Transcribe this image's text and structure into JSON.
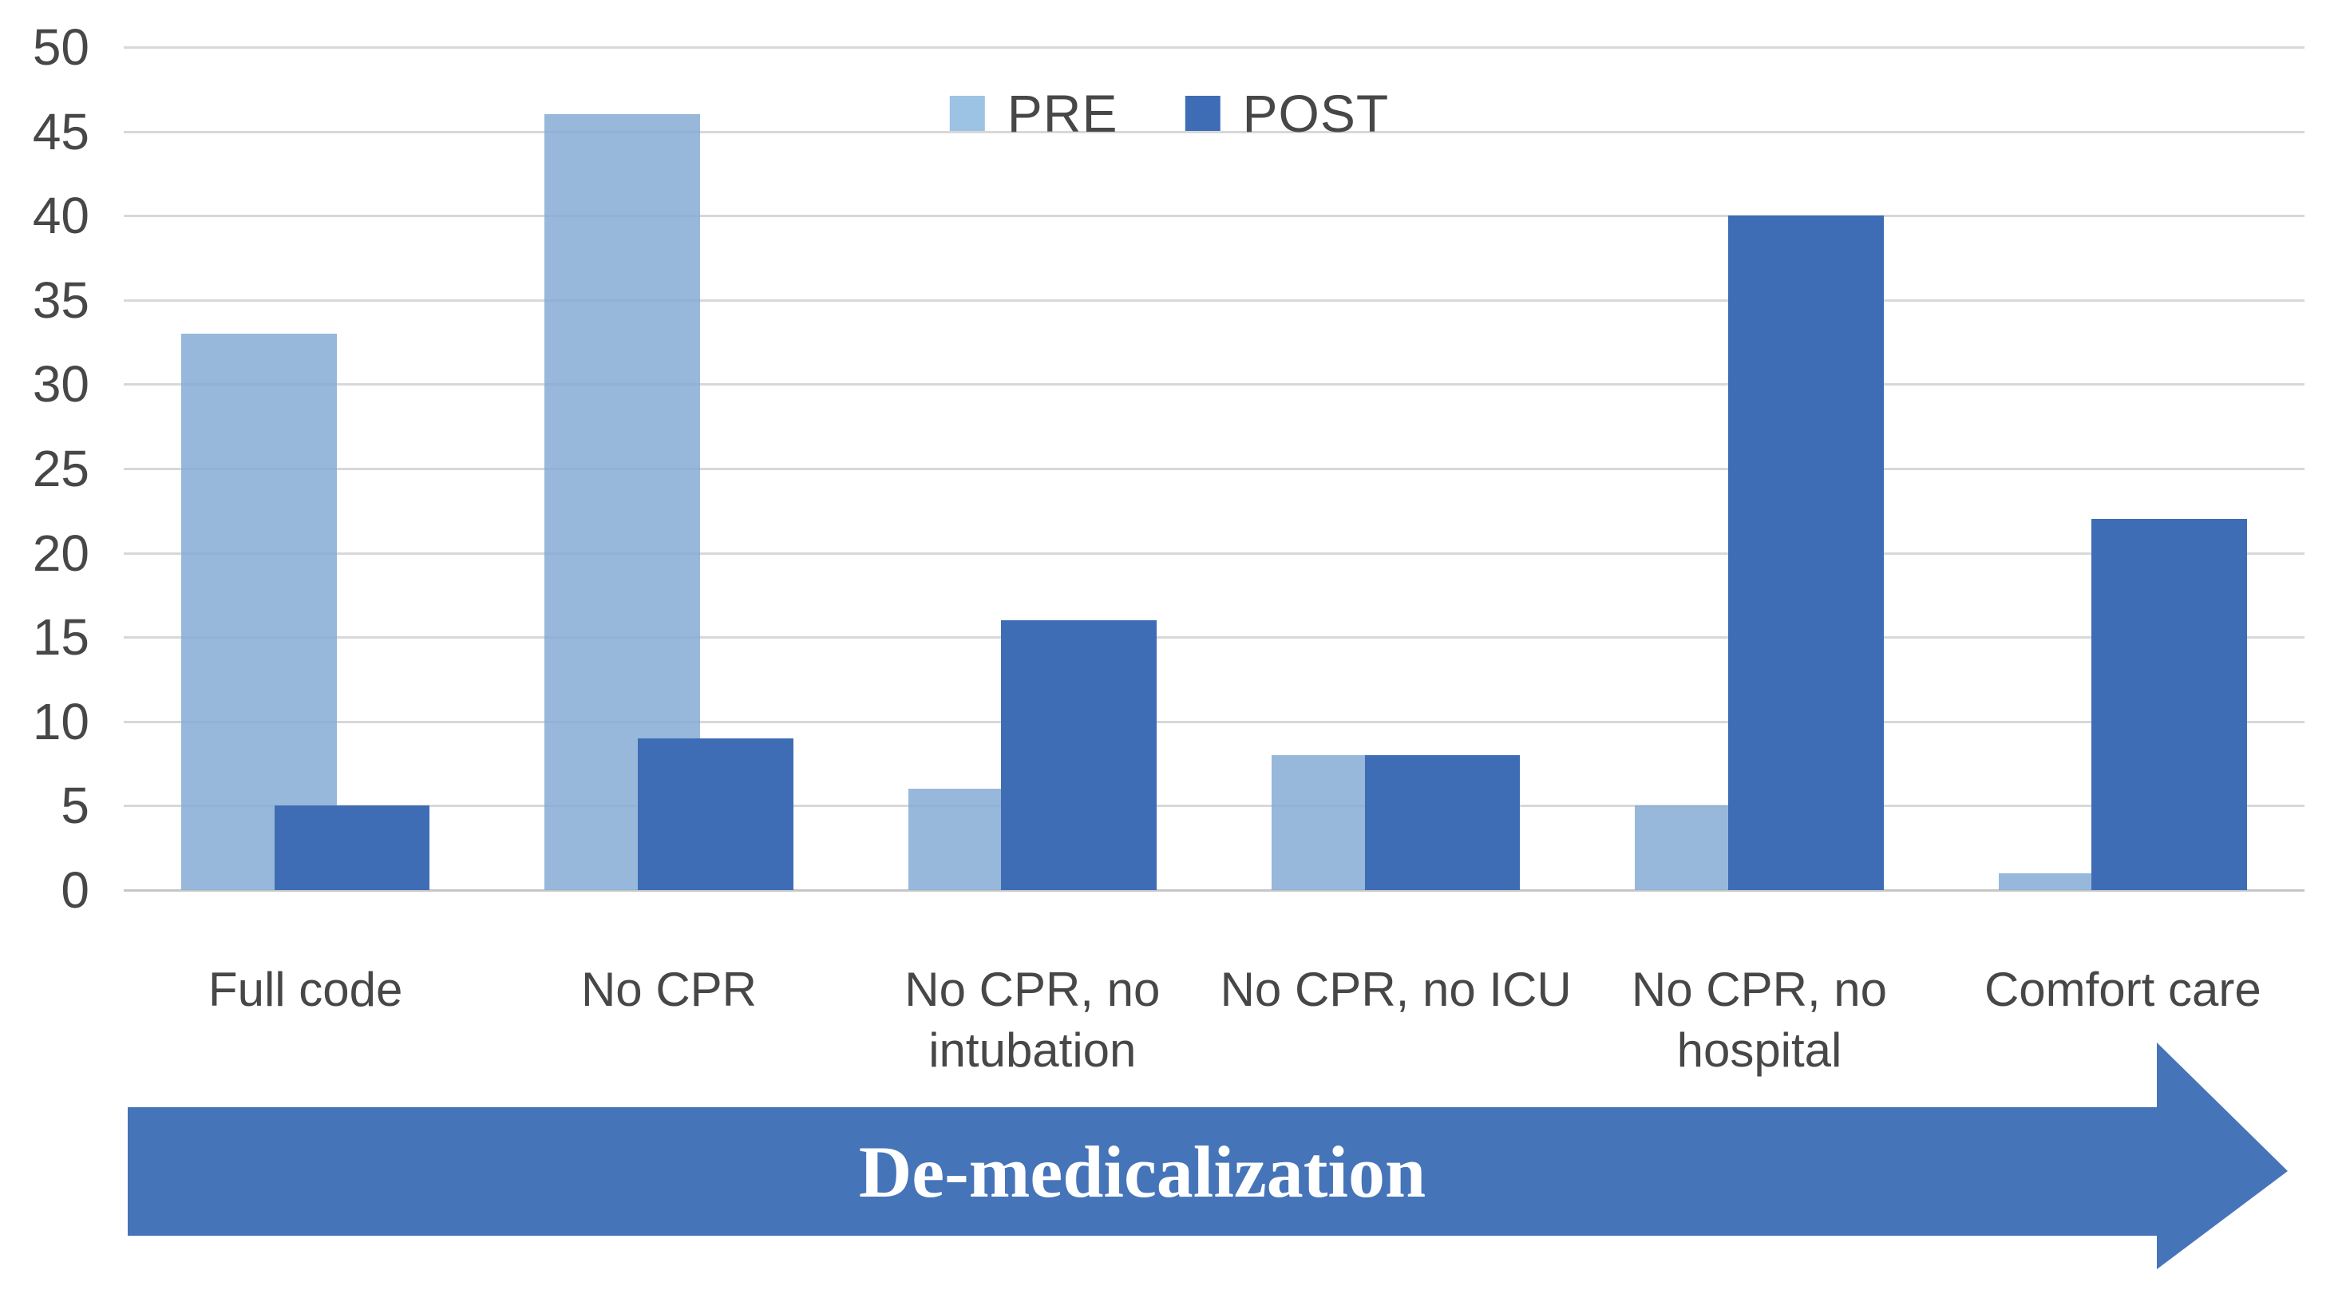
{
  "figure": {
    "background": "#FFFFFF",
    "text_color": "#474747"
  },
  "legend": {
    "pre_label": "PRE",
    "post_label": "POST",
    "pre_swatch_color": "#9CC2E4",
    "post_swatch_color": "#3E6DB5"
  },
  "arrow": {
    "label": "De-medicalization",
    "fill": "#4674B8",
    "label_color": "#FFFFFF",
    "direction": "right"
  },
  "chart_data": {
    "type": "bar",
    "title": "",
    "xlabel": "",
    "ylabel": "",
    "categories": [
      "Full code",
      "No CPR",
      "No CPR, no\nintubation",
      "No CPR, no ICU",
      "No CPR, no\nhospital",
      "Comfort care"
    ],
    "series": [
      {
        "name": "PRE",
        "color": "#85ABD3",
        "opacity": 0.85,
        "values": [
          33,
          46,
          6,
          8,
          5,
          1
        ]
      },
      {
        "name": "POST",
        "color": "#3E6DB5",
        "opacity": 1,
        "values": [
          5,
          9,
          16,
          8,
          40,
          22
        ]
      }
    ],
    "ylim": [
      0,
      50
    ],
    "yticks": [
      0,
      5,
      10,
      15,
      20,
      25,
      30,
      35,
      40,
      45,
      50
    ],
    "grid": true,
    "gridline_color": "#D8D8D8",
    "baseline_color": "#C6C6C6",
    "legend_position": "top-center",
    "annotation": "De-medicalization arrow pointing right below the category axis"
  }
}
